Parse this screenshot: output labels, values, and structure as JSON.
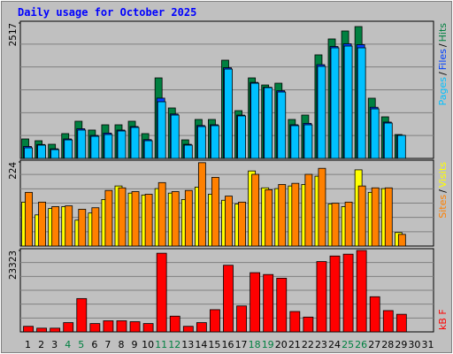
{
  "chart_data": [
    {
      "type": "bar",
      "title": "Daily usage for October 2025",
      "ylim": [
        0,
        2517
      ],
      "yticks": [
        2517
      ],
      "separator": "/",
      "series": [
        {
          "name": "Hits",
          "color": "#008040",
          "values": [
            362,
            329,
            263,
            461,
            691,
            527,
            625,
            625,
            691,
            461,
            1497,
            938,
            345,
            724,
            724,
            1826,
            888,
            1497,
            1365,
            1398,
            724,
            806,
            1925,
            2221,
            2369,
            2451,
            1119,
            773,
            444,
            null,
            null
          ]
        },
        {
          "name": "Files",
          "color": "#0040ff",
          "values": [
            222,
            259,
            179,
            362,
            552,
            428,
            471,
            527,
            593,
            349,
            1120,
            826,
            262,
            612,
            626,
            1686,
            805,
            1413,
            1323,
            1259,
            626,
            652,
            1743,
            2081,
            2131,
            2115,
            951,
            675,
            430,
            null,
            null
          ]
        },
        {
          "name": "Pages",
          "color": "#00c0ff",
          "values": [
            197,
            247,
            164,
            345,
            527,
            411,
            444,
            510,
            576,
            329,
            1053,
            806,
            247,
            592,
            609,
            1661,
            790,
            1398,
            1316,
            1234,
            609,
            625,
            1711,
            2056,
            2089,
            2056,
            921,
            658,
            428,
            null,
            null
          ]
        }
      ]
    },
    {
      "type": "bar",
      "ylim": [
        0,
        224
      ],
      "yticks": [
        224
      ],
      "separator": "/",
      "series": [
        {
          "name": "Visits",
          "color": "#ffff00",
          "values": [
            117,
            83,
            100,
            105,
            69,
            88,
            124,
            160,
            141,
            136,
            153,
            141,
            124,
            157,
            138,
            122,
            112,
            200,
            155,
            153,
            160,
            164,
            186,
            112,
            105,
            203,
            143,
            153,
            36,
            null,
            null
          ]
        },
        {
          "name": "Sites",
          "color": "#ff8000",
          "values": [
            143,
            117,
            105,
            107,
            98,
            102,
            148,
            155,
            145,
            138,
            169,
            145,
            148,
            222,
            183,
            133,
            117,
            191,
            150,
            164,
            167,
            191,
            207,
            114,
            117,
            160,
            155,
            155,
            31,
            null,
            null
          ]
        }
      ]
    },
    {
      "type": "bar",
      "ylim": [
        0,
        23323
      ],
      "yticks": [
        23323
      ],
      "categories": [
        "1",
        "2",
        "3",
        "4",
        "5",
        "6",
        "7",
        "8",
        "9",
        "10",
        "11",
        "12",
        "13",
        "14",
        "15",
        "16",
        "17",
        "18",
        "19",
        "20",
        "21",
        "22",
        "23",
        "24",
        "25",
        "26",
        "27",
        "28",
        "29",
        "30",
        "31"
      ],
      "category_colors": [
        "#000000",
        "#000000",
        "#000000",
        "#008040",
        "#008040",
        "#000000",
        "#000000",
        "#000000",
        "#000000",
        "#000000",
        "#008040",
        "#008040",
        "#000000",
        "#000000",
        "#000000",
        "#000000",
        "#000000",
        "#008040",
        "#008040",
        "#000000",
        "#000000",
        "#000000",
        "#000000",
        "#000000",
        "#008040",
        "#008040",
        "#000000",
        "#000000",
        "#000000",
        "#000000",
        "#000000"
      ],
      "series": [
        {
          "name": "kB F",
          "color": "#ff0000",
          "values": [
            1590,
            1060,
            1060,
            2650,
            9541,
            2385,
            3180,
            3180,
            2915,
            2385,
            22528,
            4505,
            1590,
            2650,
            6361,
            19083,
            7421,
            16962,
            16432,
            15372,
            5831,
            4240,
            20143,
            21733,
            22263,
            23323,
            10071,
            6096,
            5036,
            null,
            null
          ]
        }
      ]
    }
  ]
}
